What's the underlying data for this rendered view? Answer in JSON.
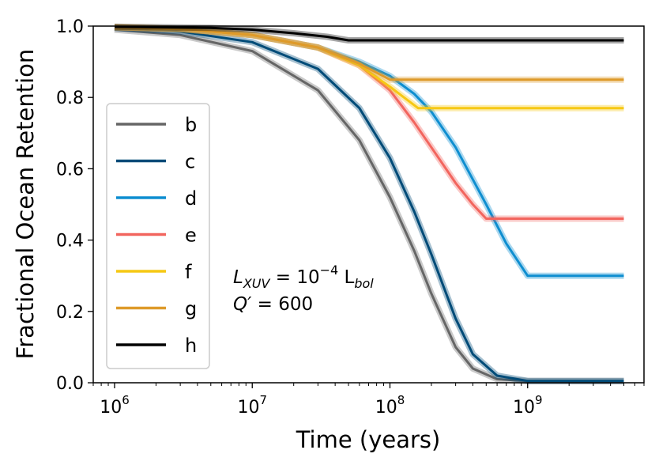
{
  "chart_data": {
    "type": "line",
    "xlabel": "Time (years)",
    "ylabel": "Fractional Ocean Retention",
    "xscale": "log",
    "xlim": [
      700000,
      7000000000
    ],
    "ylim": [
      0.0,
      1.0
    ],
    "x_ticks": [
      {
        "value": 1000000,
        "base": "10",
        "exp": "6"
      },
      {
        "value": 10000000,
        "base": "10",
        "exp": "7"
      },
      {
        "value": 100000000,
        "base": "10",
        "exp": "8"
      },
      {
        "value": 1000000000,
        "base": "10",
        "exp": "9"
      }
    ],
    "y_ticks": [
      "0.0",
      "0.2",
      "0.4",
      "0.6",
      "0.8",
      "1.0"
    ],
    "grid": false,
    "legend_position": "left",
    "series": [
      {
        "name": "b",
        "color": "#666666",
        "x": [
          1000000,
          3000000,
          10000000,
          30000000,
          60000000,
          100000000,
          150000000,
          200000000,
          300000000,
          400000000,
          600000000,
          1000000000,
          5000000000
        ],
        "y": [
          0.99,
          0.975,
          0.93,
          0.82,
          0.68,
          0.52,
          0.37,
          0.25,
          0.1,
          0.04,
          0.01,
          0.005,
          0.005
        ]
      },
      {
        "name": "c",
        "color": "#004b78",
        "x": [
          1000000,
          3000000,
          10000000,
          30000000,
          60000000,
          100000000,
          150000000,
          200000000,
          300000000,
          400000000,
          600000000,
          1000000000,
          5000000000
        ],
        "y": [
          0.995,
          0.985,
          0.955,
          0.88,
          0.77,
          0.63,
          0.48,
          0.36,
          0.18,
          0.08,
          0.02,
          0.005,
          0.005
        ]
      },
      {
        "name": "d",
        "color": "#0e8ed0",
        "x": [
          1000000,
          3000000,
          10000000,
          30000000,
          60000000,
          100000000,
          150000000,
          200000000,
          300000000,
          400000000,
          500000000,
          700000000,
          1000000000,
          5000000000
        ],
        "y": [
          0.997,
          0.992,
          0.975,
          0.94,
          0.9,
          0.86,
          0.81,
          0.76,
          0.66,
          0.57,
          0.5,
          0.39,
          0.3,
          0.3
        ]
      },
      {
        "name": "e",
        "color": "#f2655e",
        "x": [
          1000000,
          3000000,
          10000000,
          30000000,
          60000000,
          100000000,
          150000000,
          200000000,
          300000000,
          400000000,
          500000000,
          5000000000
        ],
        "y": [
          0.997,
          0.992,
          0.975,
          0.94,
          0.89,
          0.82,
          0.73,
          0.66,
          0.56,
          0.5,
          0.46,
          0.46
        ]
      },
      {
        "name": "f",
        "color": "#f6c814",
        "x": [
          1000000,
          3000000,
          10000000,
          30000000,
          60000000,
          100000000,
          160000000,
          5000000000
        ],
        "y": [
          0.997,
          0.992,
          0.975,
          0.94,
          0.89,
          0.83,
          0.77,
          0.77
        ]
      },
      {
        "name": "g",
        "color": "#de9a2a",
        "x": [
          1000000,
          3000000,
          10000000,
          30000000,
          60000000,
          100000000,
          5000000000
        ],
        "y": [
          0.997,
          0.992,
          0.975,
          0.94,
          0.895,
          0.85,
          0.85
        ]
      },
      {
        "name": "h",
        "color": "#000000",
        "x": [
          1000000,
          5000000,
          10000000,
          20000000,
          35000000,
          50000000,
          5000000000
        ],
        "y": [
          0.998,
          0.995,
          0.99,
          0.98,
          0.97,
          0.96,
          0.96
        ]
      }
    ],
    "annotations": {
      "line1": {
        "italic": "L",
        "sub1": "XUV",
        "mid": " = 10",
        "sup": "−4",
        "post": " L",
        "sub2": "bol"
      },
      "line2": {
        "italic": "Q′",
        "rest": " = 600"
      }
    }
  }
}
